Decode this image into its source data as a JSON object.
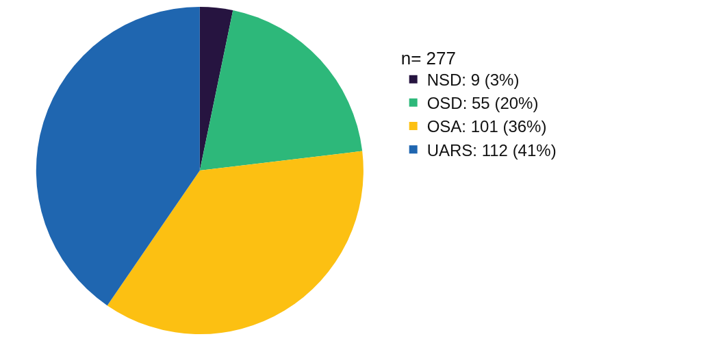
{
  "chart_data": {
    "type": "pie",
    "legend_title": "n= 277",
    "legend": "right",
    "categories": [
      "NSD: 9 (3%)",
      "OSD: 55 (20%)",
      "OSA: 101 (36%)",
      "UARS: 112 (41%)"
    ],
    "values": [
      9,
      55,
      101,
      112
    ],
    "colors": [
      "#261440",
      "#2db87a",
      "#fcc012",
      "#1f66b0"
    ]
  }
}
